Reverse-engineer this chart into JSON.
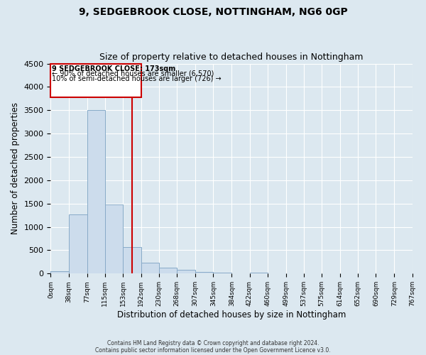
{
  "title": "9, SEDGEBROOK CLOSE, NOTTINGHAM, NG6 0GP",
  "subtitle": "Size of property relative to detached houses in Nottingham",
  "xlabel": "Distribution of detached houses by size in Nottingham",
  "ylabel": "Number of detached properties",
  "bar_color": "#ccdcec",
  "bar_edge_color": "#88aac8",
  "background_color": "#dce8f0",
  "plot_bg_color": "#dce8f0",
  "grid_color": "#ffffff",
  "bins": [
    0,
    38,
    77,
    115,
    153,
    192,
    230,
    268,
    307,
    345,
    384,
    422,
    460,
    499,
    537,
    575,
    614,
    652,
    690,
    729,
    767
  ],
  "counts": [
    50,
    1270,
    3500,
    1480,
    575,
    240,
    130,
    75,
    30,
    15,
    5,
    20,
    0,
    0,
    0,
    0,
    0,
    0,
    0,
    0
  ],
  "tick_labels": [
    "0sqm",
    "38sqm",
    "77sqm",
    "115sqm",
    "153sqm",
    "192sqm",
    "230sqm",
    "268sqm",
    "307sqm",
    "345sqm",
    "384sqm",
    "422sqm",
    "460sqm",
    "499sqm",
    "537sqm",
    "575sqm",
    "614sqm",
    "652sqm",
    "690sqm",
    "729sqm",
    "767sqm"
  ],
  "ylim": [
    0,
    4500
  ],
  "yticks": [
    0,
    500,
    1000,
    1500,
    2000,
    2500,
    3000,
    3500,
    4000,
    4500
  ],
  "property_line_x": 173,
  "property_line_color": "#cc0000",
  "annotation_title": "9 SEDGEBROOK CLOSE: 173sqm",
  "annotation_line1": "← 90% of detached houses are smaller (6,570)",
  "annotation_line2": "10% of semi-detached houses are larger (726) →",
  "annotation_box_color": "#ffffff",
  "annotation_border_color": "#cc0000",
  "footer_line1": "Contains HM Land Registry data © Crown copyright and database right 2024.",
  "footer_line2": "Contains public sector information licensed under the Open Government Licence v3.0."
}
